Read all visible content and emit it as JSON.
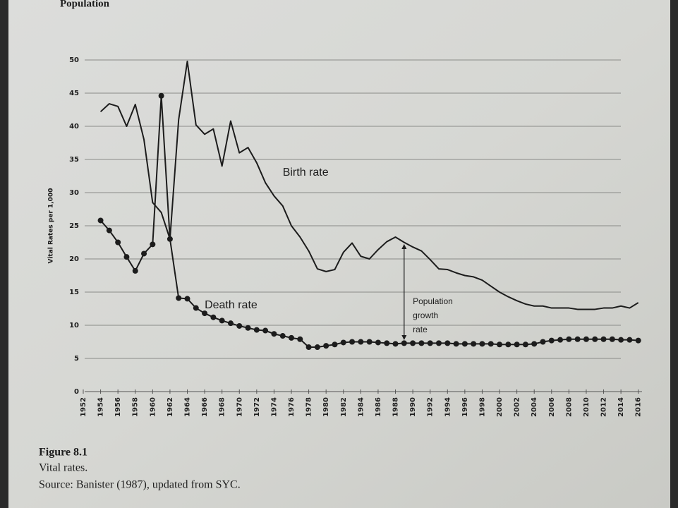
{
  "header": "Population",
  "caption": {
    "figure": "Figure 8.1",
    "title": "Vital rates.",
    "source": "Source: Banister (1987), updated from SYC."
  },
  "chart_data": {
    "type": "line",
    "y_label": "Vital Rates per 1,000",
    "x": [
      1954,
      1955,
      1956,
      1957,
      1958,
      1959,
      1960,
      1961,
      1962,
      1963,
      1964,
      1965,
      1966,
      1967,
      1968,
      1969,
      1970,
      1971,
      1972,
      1973,
      1974,
      1975,
      1976,
      1977,
      1978,
      1979,
      1980,
      1981,
      1982,
      1983,
      1984,
      1985,
      1986,
      1987,
      1988,
      1989,
      1990,
      1991,
      1992,
      1993,
      1994,
      1995,
      1996,
      1997,
      1998,
      1999,
      2000,
      2001,
      2002,
      2003,
      2004,
      2005,
      2006,
      2007,
      2008,
      2009,
      2010,
      2011,
      2012,
      2013,
      2014,
      2015,
      2016
    ],
    "series": [
      {
        "name": "Birth rate",
        "color": "#1c1c1c",
        "markers": false,
        "values": [
          42.2,
          43.4,
          43.0,
          40.0,
          43.3,
          38.0,
          28.5,
          27.0,
          23.0,
          41.0,
          49.8,
          40.2,
          38.8,
          39.6,
          34.0,
          40.8,
          36.0,
          36.8,
          34.5,
          31.5,
          29.5,
          28.0,
          25.0,
          23.3,
          21.2,
          18.5,
          18.1,
          18.4,
          21.0,
          22.4,
          20.4,
          20.0,
          21.4,
          22.6,
          23.3,
          22.5,
          21.8,
          21.2,
          19.9,
          18.5,
          18.4,
          17.9,
          17.5,
          17.3,
          16.8,
          15.9,
          15.0,
          14.3,
          13.7,
          13.2,
          12.9,
          12.9,
          12.6,
          12.6,
          12.6,
          12.4,
          12.4,
          12.4,
          12.6,
          12.6,
          12.9,
          12.6,
          13.4
        ]
      },
      {
        "name": "Death rate",
        "color": "#1c1c1c",
        "markers": true,
        "values": [
          25.8,
          24.3,
          22.5,
          20.3,
          18.2,
          20.8,
          22.2,
          44.6,
          23.0,
          14.1,
          14.0,
          12.6,
          11.8,
          11.2,
          10.7,
          10.3,
          9.9,
          9.6,
          9.3,
          9.2,
          8.7,
          8.4,
          8.1,
          7.9,
          6.7,
          6.7,
          6.9,
          7.1,
          7.4,
          7.5,
          7.5,
          7.5,
          7.4,
          7.3,
          7.2,
          7.3,
          7.3,
          7.3,
          7.3,
          7.3,
          7.3,
          7.2,
          7.2,
          7.2,
          7.2,
          7.2,
          7.1,
          7.1,
          7.1,
          7.1,
          7.2,
          7.5,
          7.7,
          7.8,
          7.9,
          7.9,
          7.9,
          7.9,
          7.9,
          7.9,
          7.8,
          7.8,
          7.7
        ]
      }
    ],
    "annotations": [
      {
        "text": [
          "Birth rate"
        ],
        "x": 1975,
        "y": 33
      },
      {
        "text": [
          "Death rate"
        ],
        "x": 1966,
        "y": 13
      },
      {
        "text": [
          "Population",
          "growth",
          "rate"
        ],
        "x": 1990,
        "y": 13.5
      }
    ],
    "arrow_x": 1989,
    "xlim": [
      1951,
      2017
    ],
    "ylim": [
      0,
      50
    ],
    "xticks": [
      1952,
      1954,
      1956,
      1958,
      1960,
      1962,
      1964,
      1966,
      1968,
      1970,
      1972,
      1974,
      1976,
      1978,
      1980,
      1982,
      1984,
      1986,
      1988,
      1990,
      1992,
      1994,
      1996,
      1998,
      2000,
      2002,
      2004,
      2006,
      2008,
      2010,
      2012,
      2014,
      2016
    ],
    "yticks": [
      0,
      5,
      10,
      15,
      20,
      25,
      30,
      35,
      40,
      45,
      50
    ],
    "grid": true
  }
}
